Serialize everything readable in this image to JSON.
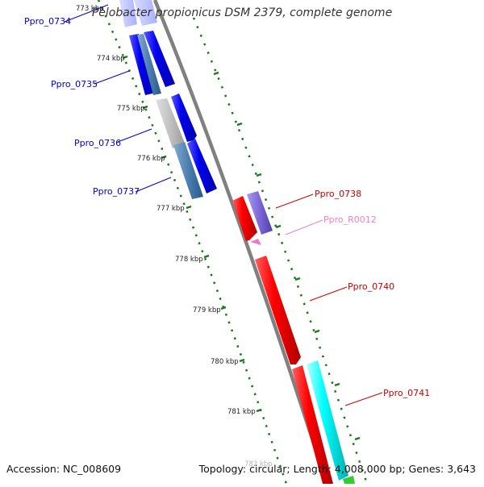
{
  "title": "Pelobacter propionicus DSM 2379, complete genome",
  "footer": {
    "accession": "Accession: NC_008609",
    "topology": "Topology: circular; Length: 4,008,000 bp; Genes: 3,643"
  },
  "ticks": [
    "773 kbp",
    "774 kbp",
    "775 kbp",
    "776 kbp",
    "777 kbp",
    "778 kbp",
    "779 kbp",
    "780 kbp",
    "781 kbp",
    "782 kbp"
  ],
  "genes_left": [
    {
      "id": "Ppro_0734",
      "color": "#0000cc"
    },
    {
      "id": "Ppro_0735",
      "color": "#0000cc"
    },
    {
      "id": "Ppro_0736",
      "color": "#0000cc"
    },
    {
      "id": "Ppro_0737",
      "color": "#0000cc"
    }
  ],
  "genes_right": [
    {
      "id": "Ppro_0738",
      "color": "#cc0000"
    },
    {
      "id": "Ppro_R0012",
      "color": "#ee82c8"
    },
    {
      "id": "Ppro_0740",
      "color": "#cc0000"
    },
    {
      "id": "Ppro_0741",
      "color": "#cc0000"
    }
  ],
  "colors": {
    "blue_gene": "#0000ee",
    "red_gene": "#ff0000",
    "cyan_gene": "#00ffff",
    "backbone": "#808080",
    "ruler": "#1a7a1a",
    "purple_gene": "#7a66d6",
    "pink_gene": "#e87bd0"
  }
}
